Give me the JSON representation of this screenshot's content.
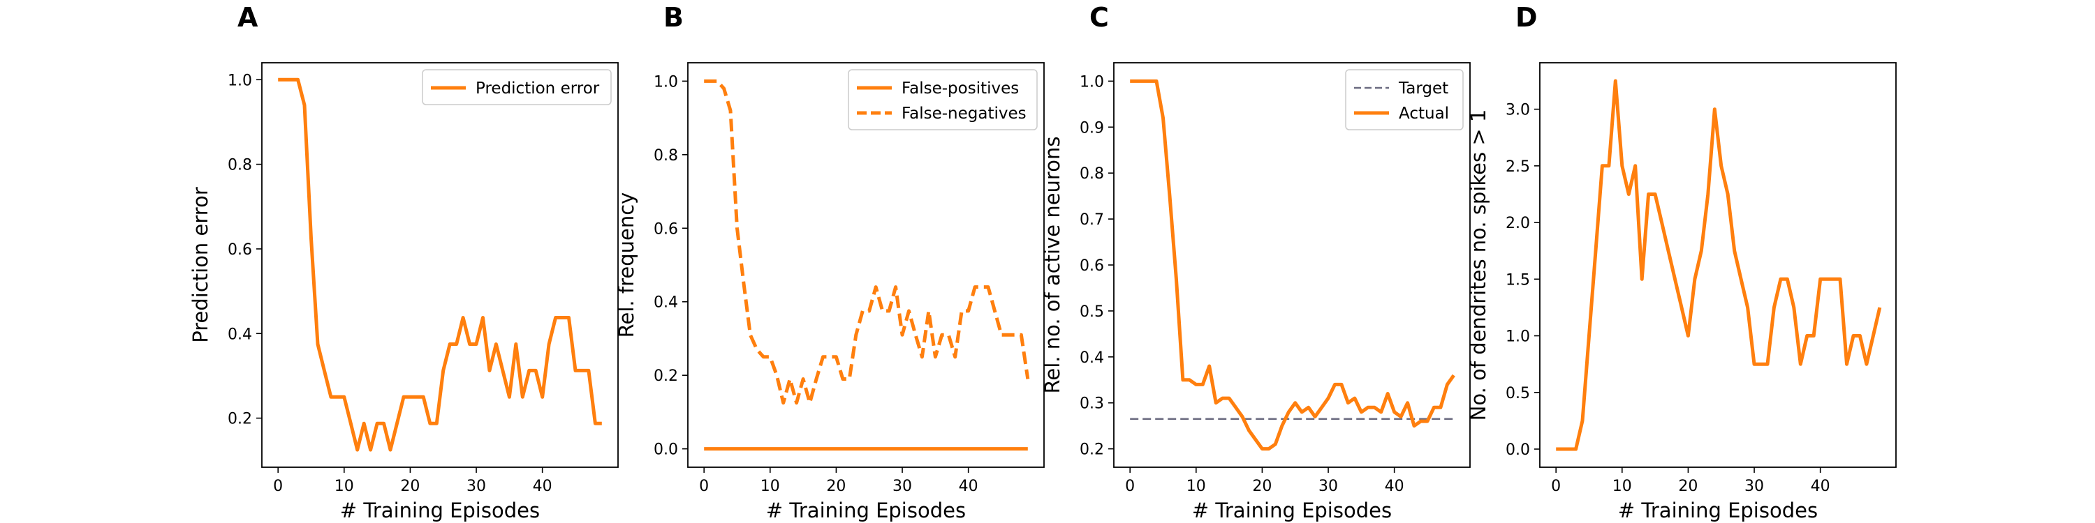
{
  "colors": {
    "orange": "#ff7f0e",
    "gray": "#6b6b80"
  },
  "chart_data": [
    {
      "type": "line",
      "panel_label": "A",
      "xlabel": "# Training Episodes",
      "ylabel": "Prediction error",
      "xlim": [
        -2.45,
        51.45
      ],
      "ylim": [
        0.084,
        1.04
      ],
      "xticks": [
        0,
        10,
        20,
        30,
        40
      ],
      "yticks": [
        0.2,
        0.4,
        0.6,
        0.8,
        1.0
      ],
      "ytick_decimals": 1,
      "legend": "top-right",
      "series": [
        {
          "name": "Prediction error",
          "style": "solid",
          "color": "#ff7f0e",
          "x": [
            0,
            1,
            2,
            3,
            4,
            5,
            6,
            7,
            8,
            9,
            10,
            11,
            12,
            13,
            14,
            15,
            16,
            17,
            18,
            19,
            20,
            21,
            22,
            23,
            24,
            25,
            26,
            27,
            28,
            29,
            30,
            31,
            32,
            33,
            34,
            35,
            36,
            37,
            38,
            39,
            40,
            41,
            42,
            43,
            44,
            45,
            46,
            47,
            48,
            49
          ],
          "y": [
            1.0,
            1.0,
            1.0,
            1.0,
            0.94,
            0.625,
            0.375,
            0.3125,
            0.25,
            0.25,
            0.25,
            0.1875,
            0.125,
            0.1875,
            0.125,
            0.1875,
            0.1875,
            0.125,
            0.1875,
            0.25,
            0.25,
            0.25,
            0.25,
            0.1875,
            0.1875,
            0.3125,
            0.375,
            0.375,
            0.4375,
            0.375,
            0.375,
            0.4375,
            0.3125,
            0.375,
            0.3125,
            0.25,
            0.375,
            0.25,
            0.3125,
            0.3125,
            0.25,
            0.375,
            0.4375,
            0.4375,
            0.4375,
            0.3125,
            0.3125,
            0.3125,
            0.1875,
            0.1875
          ]
        }
      ]
    },
    {
      "type": "line",
      "panel_label": "B",
      "xlabel": "# Training Episodes",
      "ylabel": "Rel. frequency",
      "xlim": [
        -2.45,
        51.45
      ],
      "ylim": [
        -0.05,
        1.05
      ],
      "xticks": [
        0,
        10,
        20,
        30,
        40
      ],
      "yticks": [
        0.0,
        0.2,
        0.4,
        0.6,
        0.8,
        1.0
      ],
      "ytick_decimals": 1,
      "legend": "top-right",
      "series": [
        {
          "name": "False-positives",
          "style": "solid",
          "color": "#ff7f0e",
          "x": [
            0,
            49
          ],
          "y": [
            0.0,
            0.0
          ]
        },
        {
          "name": "False-negatives",
          "style": "dashed",
          "color": "#ff7f0e",
          "x": [
            0,
            1,
            2,
            3,
            4,
            5,
            6,
            7,
            8,
            9,
            10,
            11,
            12,
            13,
            14,
            15,
            16,
            17,
            18,
            19,
            20,
            21,
            22,
            23,
            24,
            25,
            26,
            27,
            28,
            29,
            30,
            31,
            32,
            33,
            34,
            35,
            36,
            37,
            38,
            39,
            40,
            41,
            42,
            43,
            44,
            45,
            46,
            47,
            48,
            49
          ],
          "y": [
            1.0,
            1.0,
            1.0,
            0.98,
            0.92,
            0.6,
            0.45,
            0.31,
            0.27,
            0.25,
            0.25,
            0.2,
            0.125,
            0.19,
            0.125,
            0.19,
            0.125,
            0.19,
            0.25,
            0.25,
            0.25,
            0.19,
            0.19,
            0.31,
            0.375,
            0.375,
            0.44,
            0.375,
            0.375,
            0.44,
            0.31,
            0.375,
            0.31,
            0.25,
            0.375,
            0.25,
            0.31,
            0.31,
            0.25,
            0.375,
            0.375,
            0.44,
            0.44,
            0.44,
            0.375,
            0.31,
            0.31,
            0.31,
            0.31,
            0.19
          ]
        }
      ]
    },
    {
      "type": "line",
      "panel_label": "C",
      "xlabel": "# Training Episodes",
      "ylabel": "Rel. no. of active neurons",
      "xlim": [
        -2.45,
        51.45
      ],
      "ylim": [
        0.16,
        1.04
      ],
      "xticks": [
        0,
        10,
        20,
        30,
        40
      ],
      "yticks": [
        0.2,
        0.3,
        0.4,
        0.5,
        0.6,
        0.7,
        0.8,
        0.9,
        1.0
      ],
      "ytick_decimals": 1,
      "legend": "top-right",
      "series": [
        {
          "name": "Target",
          "style": "dashed-thin",
          "color": "#6b6b80",
          "x": [
            0,
            49
          ],
          "y": [
            0.265,
            0.265
          ]
        },
        {
          "name": "Actual",
          "style": "solid",
          "color": "#ff7f0e",
          "x": [
            0,
            1,
            2,
            3,
            4,
            5,
            6,
            7,
            8,
            9,
            10,
            11,
            12,
            13,
            14,
            15,
            16,
            17,
            18,
            19,
            20,
            21,
            22,
            23,
            24,
            25,
            26,
            27,
            28,
            29,
            30,
            31,
            32,
            33,
            34,
            35,
            36,
            37,
            38,
            39,
            40,
            41,
            42,
            43,
            44,
            45,
            46,
            47,
            48,
            49
          ],
          "y": [
            1.0,
            1.0,
            1.0,
            1.0,
            1.0,
            0.92,
            0.75,
            0.57,
            0.35,
            0.35,
            0.34,
            0.34,
            0.38,
            0.3,
            0.31,
            0.31,
            0.29,
            0.27,
            0.24,
            0.22,
            0.2,
            0.2,
            0.21,
            0.25,
            0.28,
            0.3,
            0.28,
            0.29,
            0.27,
            0.29,
            0.31,
            0.34,
            0.34,
            0.3,
            0.31,
            0.28,
            0.29,
            0.29,
            0.28,
            0.32,
            0.28,
            0.27,
            0.3,
            0.25,
            0.26,
            0.26,
            0.29,
            0.29,
            0.34,
            0.36
          ]
        }
      ]
    },
    {
      "type": "line",
      "panel_label": "D",
      "xlabel": "# Training Episodes",
      "ylabel": "No. of dendrites no. spikes > 1",
      "xlim": [
        -2.45,
        51.45
      ],
      "ylim": [
        -0.16,
        3.41
      ],
      "xticks": [
        0,
        10,
        20,
        30,
        40
      ],
      "yticks": [
        0.0,
        0.5,
        1.0,
        1.5,
        2.0,
        2.5,
        3.0
      ],
      "ytick_decimals": 1,
      "legend": "none",
      "series": [
        {
          "name": "",
          "style": "solid",
          "color": "#ff7f0e",
          "x": [
            0,
            1,
            2,
            3,
            4,
            5,
            6,
            7,
            8,
            9,
            10,
            11,
            12,
            13,
            14,
            15,
            16,
            17,
            18,
            19,
            20,
            21,
            22,
            23,
            24,
            25,
            26,
            27,
            28,
            29,
            30,
            31,
            32,
            33,
            34,
            35,
            36,
            37,
            38,
            39,
            40,
            41,
            42,
            43,
            44,
            45,
            46,
            47,
            48,
            49
          ],
          "y": [
            0.0,
            0.0,
            0.0,
            0.0,
            0.25,
            1.0,
            1.75,
            2.5,
            2.5,
            3.25,
            2.5,
            2.25,
            2.5,
            1.5,
            2.25,
            2.25,
            2.0,
            1.75,
            1.5,
            1.25,
            1.0,
            1.5,
            1.75,
            2.25,
            3.0,
            2.5,
            2.25,
            1.75,
            1.5,
            1.25,
            0.75,
            0.75,
            0.75,
            1.25,
            1.5,
            1.5,
            1.25,
            0.75,
            1.0,
            1.0,
            1.5,
            1.5,
            1.5,
            1.5,
            0.75,
            1.0,
            1.0,
            0.75,
            1.0,
            1.25
          ]
        }
      ]
    }
  ]
}
